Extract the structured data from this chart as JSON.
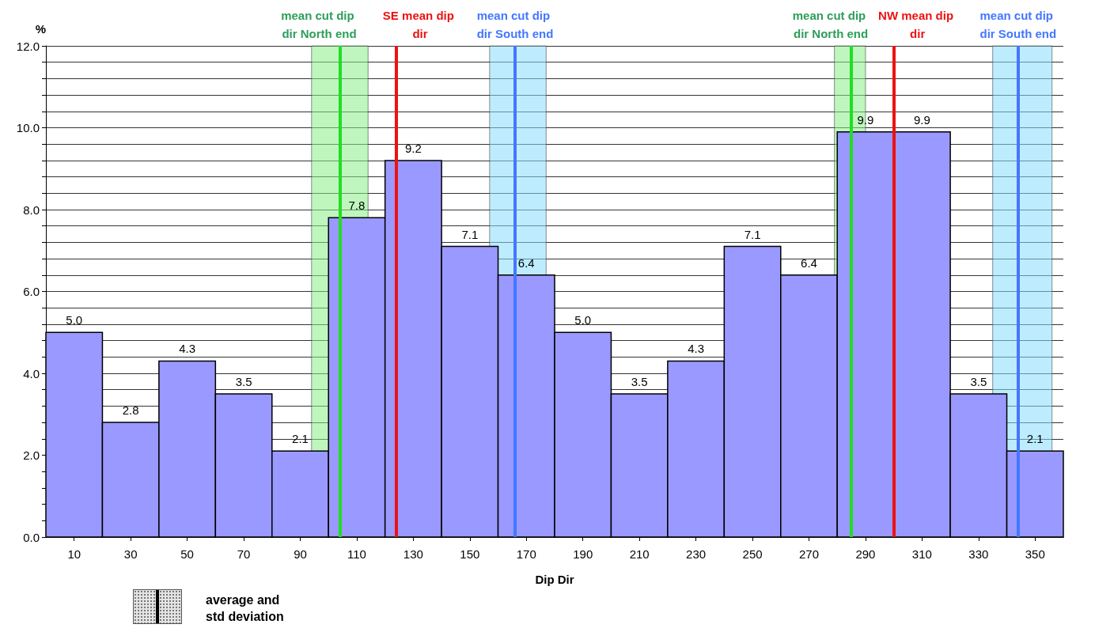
{
  "chart_data": {
    "type": "bar",
    "ylabel": "%",
    "xlabel": "Dip Dir",
    "color": "#9999ff",
    "x": [
      10,
      30,
      50,
      70,
      90,
      110,
      130,
      150,
      170,
      190,
      210,
      230,
      250,
      270,
      290,
      310,
      330,
      350
    ],
    "values": [
      5.0,
      2.8,
      4.3,
      3.5,
      2.1,
      7.8,
      9.2,
      7.1,
      6.4,
      5.0,
      3.5,
      4.3,
      7.1,
      6.4,
      9.9,
      9.9,
      3.5,
      2.1
    ],
    "value_labels": [
      "5.0",
      "2.8",
      "4.3",
      "3.5",
      "2.1",
      "7.8",
      "9.2",
      "7.1",
      "6.4",
      "5.0",
      "3.5",
      "4.3",
      "7.1",
      "6.4",
      "9.9",
      "9.9",
      "3.5",
      "2.1"
    ],
    "xlim": [
      0,
      360
    ],
    "xticks": [
      10,
      30,
      50,
      70,
      90,
      110,
      130,
      150,
      170,
      190,
      210,
      230,
      250,
      270,
      290,
      310,
      330,
      350
    ],
    "ylim": [
      0,
      12
    ],
    "yticks": [
      {
        "value": 0,
        "label": "0.0"
      },
      {
        "value": 0.4,
        "label": null
      },
      {
        "value": 0.8,
        "label": null
      },
      {
        "value": 1.2,
        "label": null
      },
      {
        "value": 1.6,
        "label": null
      },
      {
        "value": 2,
        "label": "2.0"
      },
      {
        "value": 2.4,
        "label": null
      },
      {
        "value": 2.8,
        "label": null
      },
      {
        "value": 3.2,
        "label": null
      },
      {
        "value": 3.6,
        "label": null
      },
      {
        "value": 4,
        "label": "4.0"
      },
      {
        "value": 4.4,
        "label": null
      },
      {
        "value": 4.8,
        "label": null
      },
      {
        "value": 5.2,
        "label": null
      },
      {
        "value": 5.6,
        "label": null
      },
      {
        "value": 6,
        "label": "6.0"
      },
      {
        "value": 6.4,
        "label": null
      },
      {
        "value": 6.8,
        "label": null
      },
      {
        "value": 7.2,
        "label": null
      },
      {
        "value": 7.6,
        "label": null
      },
      {
        "value": 8,
        "label": "8.0"
      },
      {
        "value": 8.4,
        "label": null
      },
      {
        "value": 8.8,
        "label": null
      },
      {
        "value": 9.2,
        "label": null
      },
      {
        "value": 9.6,
        "label": null
      },
      {
        "value": 10,
        "label": "10.0"
      },
      {
        "value": 10.4,
        "label": null
      },
      {
        "value": 10.8,
        "label": null
      },
      {
        "value": 11.2,
        "label": null
      },
      {
        "value": 11.6,
        "label": null
      },
      {
        "value": 12,
        "label": "12.0"
      }
    ],
    "grid": "y",
    "ref_lines": [
      {
        "axis": "x",
        "value": 104,
        "label": "mean cut dip dir North end",
        "color": "#22dd22"
      },
      {
        "axis": "x",
        "value": 124,
        "label": "SE mean dip dir",
        "color": "#ee1111"
      },
      {
        "axis": "x",
        "value": 166,
        "label": "mean cut dip dir South end",
        "color": "#4477ff"
      },
      {
        "axis": "x",
        "value": 285,
        "label": "mean cut dip dir North end",
        "color": "#22dd22"
      },
      {
        "axis": "x",
        "value": 300,
        "label": "NW mean dip dir",
        "color": "#ee1111"
      },
      {
        "axis": "x",
        "value": 344,
        "label": "mean cut dip dir South end",
        "color": "#4477ff"
      }
    ],
    "bands": [
      {
        "axis": "x",
        "from": 94,
        "to": 114,
        "color": "#88ee88"
      },
      {
        "axis": "x",
        "from": 157,
        "to": 177,
        "color": "#88ddff"
      },
      {
        "axis": "x",
        "from": 279,
        "to": 290,
        "color": "#88ee88"
      },
      {
        "axis": "x",
        "from": 335,
        "to": 356,
        "color": "#88ddff"
      }
    ],
    "annotations": [
      "average and std deviation"
    ]
  }
}
